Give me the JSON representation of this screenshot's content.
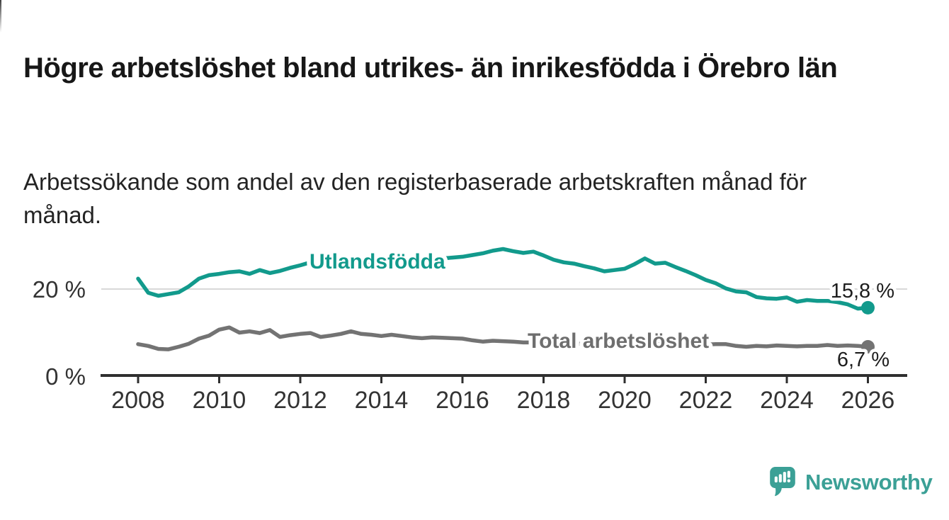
{
  "header": {
    "title": "Högre arbetslöshet bland utrikes- än inrikesfödda i Örebro län",
    "subtitle": "Arbetssökande som andel av den registerbaserade arbetskraften månad för månad."
  },
  "footer": {
    "brand": "Newsworthy",
    "logo_icon": "bar-chart-speech-bubble-icon"
  },
  "colors": {
    "series_foreign_born": "#129a8c",
    "series_total": "#737373",
    "series_total_label": "#6e6e6e",
    "axis": "#2f2f2f",
    "gridline": "#d8d8d8",
    "tick_text": "#333333",
    "title_text": "#171717",
    "brand_teal": "#3ba096",
    "background": "#ffffff"
  },
  "chart_data": {
    "type": "line",
    "title": "Högre arbetslöshet bland utrikes- än inrikesfödda i Örebro län",
    "subtitle": "Arbetssökande som andel av den registerbaserade arbetskraften månad för månad.",
    "unit": "%",
    "x_start": 2008,
    "x_step_years": 0.25,
    "x_end": 2026,
    "xlim": [
      2007.1,
      2027.0
    ],
    "ylim": [
      0,
      33
    ],
    "grid": "single horizontal gridline at 20%",
    "y_axis": [
      {
        "value": 20,
        "label": "20 %",
        "gridline": true
      },
      {
        "value": 0,
        "label": "0 %",
        "gridline": false
      }
    ],
    "x_ticks": [
      {
        "year": 2008,
        "label": "2008"
      },
      {
        "year": 2010,
        "label": "2010"
      },
      {
        "year": 2012,
        "label": "2012"
      },
      {
        "year": 2014,
        "label": "2014"
      },
      {
        "year": 2016,
        "label": "2016"
      },
      {
        "year": 2018,
        "label": "2018"
      },
      {
        "year": 2020,
        "label": "2020"
      },
      {
        "year": 2022,
        "label": "2022"
      },
      {
        "year": 2024,
        "label": "2024"
      },
      {
        "year": 2026,
        "label": "2026"
      }
    ],
    "legend_position": "inline labels on lines, end-value labels at right",
    "series": [
      {
        "name": "Utlandsfödda",
        "color": "#129a8c",
        "label_color": "#129a8c",
        "end_label": "15,8 %",
        "end_value": 15.8,
        "values": [
          22.6,
          19.3,
          18.6,
          19.0,
          19.4,
          20.8,
          22.6,
          23.4,
          23.7,
          24.1,
          24.3,
          23.7,
          24.6,
          23.9,
          24.4,
          25.1,
          25.7,
          26.4,
          25.8,
          26.0,
          26.2,
          26.3,
          26.4,
          26.5,
          26.6,
          26.7,
          26.9,
          27.0,
          27.1,
          27.2,
          27.3,
          27.5,
          27.7,
          28.1,
          28.5,
          29.1,
          29.5,
          29.0,
          28.6,
          28.9,
          28.0,
          27.0,
          26.4,
          26.1,
          25.5,
          25.0,
          24.3,
          24.6,
          24.9,
          26.0,
          27.3,
          26.1,
          26.3,
          25.3,
          24.4,
          23.4,
          22.3,
          21.5,
          20.3,
          19.6,
          19.4,
          18.3,
          18.0,
          17.9,
          18.2,
          17.2,
          17.6,
          17.4,
          17.4,
          17.1,
          16.6,
          15.6,
          15.8
        ]
      },
      {
        "name": "Total arbetslöshet",
        "color": "#737373",
        "label_color": "#6e6e6e",
        "end_label": "6,7 %",
        "end_value": 6.7,
        "values": [
          7.3,
          6.9,
          6.2,
          6.1,
          6.7,
          7.4,
          8.6,
          9.3,
          10.7,
          11.2,
          10.0,
          10.3,
          9.9,
          10.6,
          9.0,
          9.4,
          9.7,
          9.9,
          9.0,
          9.3,
          9.7,
          10.3,
          9.7,
          9.5,
          9.2,
          9.5,
          9.2,
          8.9,
          8.7,
          8.9,
          8.8,
          8.7,
          8.6,
          8.2,
          7.9,
          8.1,
          8.0,
          7.9,
          7.7,
          7.7,
          7.8,
          7.6,
          7.5,
          7.4,
          7.4,
          7.3,
          7.2,
          7.3,
          7.5,
          7.9,
          8.0,
          7.8,
          7.7,
          7.6,
          7.4,
          7.3,
          7.2,
          7.3,
          7.3,
          6.9,
          6.7,
          6.9,
          6.8,
          7.0,
          6.9,
          6.8,
          6.9,
          6.9,
          7.1,
          6.9,
          7.0,
          6.9,
          6.7
        ]
      }
    ]
  }
}
